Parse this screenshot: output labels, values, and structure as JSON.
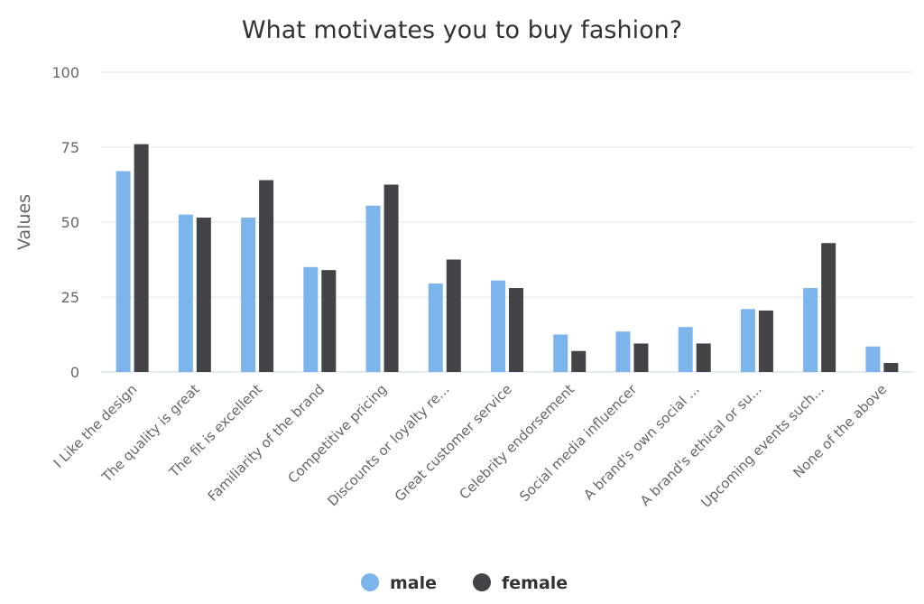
{
  "chart_data": {
    "type": "bar",
    "title": "What motivates you to buy fashion?",
    "xlabel": "",
    "ylabel": "Values",
    "ylim": [
      0,
      100
    ],
    "yticks": [
      "0",
      "25",
      "50",
      "75",
      "100"
    ],
    "grid": true,
    "legend_position": "bottom-center",
    "categories": [
      "I Like the design",
      "The quality is great",
      "The fit is excellent",
      "Familiarity of the brand",
      "Competitive pricing",
      "Discounts or loyalty re...",
      "Great customer service",
      "Celebrity endorsement",
      "Social media influencer",
      "A brand's own social ...",
      "A brand's ethical or su...",
      "Upcoming events such...",
      "None of the above"
    ],
    "series": [
      {
        "name": "male",
        "color": "#7cb5ec",
        "values": [
          67,
          52.5,
          51.5,
          35,
          55.5,
          29.5,
          30.5,
          12.5,
          13.5,
          15,
          21,
          28,
          8.5
        ]
      },
      {
        "name": "female",
        "color": "#434348",
        "values": [
          76,
          51.5,
          64,
          34,
          62.5,
          37.5,
          28,
          7,
          9.5,
          9.5,
          20.5,
          43,
          3
        ]
      }
    ]
  }
}
